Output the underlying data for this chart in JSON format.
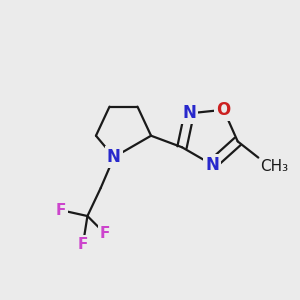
{
  "bg_color": "#EBEBEB",
  "bond_color": "#1A1A1A",
  "N_color": "#2828CC",
  "O_color": "#CC2020",
  "F_color": "#CC44CC",
  "font_size_atom": 12,
  "line_width": 1.6,
  "figsize": [
    3.0,
    3.0
  ],
  "dpi": 100,
  "xlim": [
    0,
    10
  ],
  "ylim": [
    0,
    10
  ]
}
